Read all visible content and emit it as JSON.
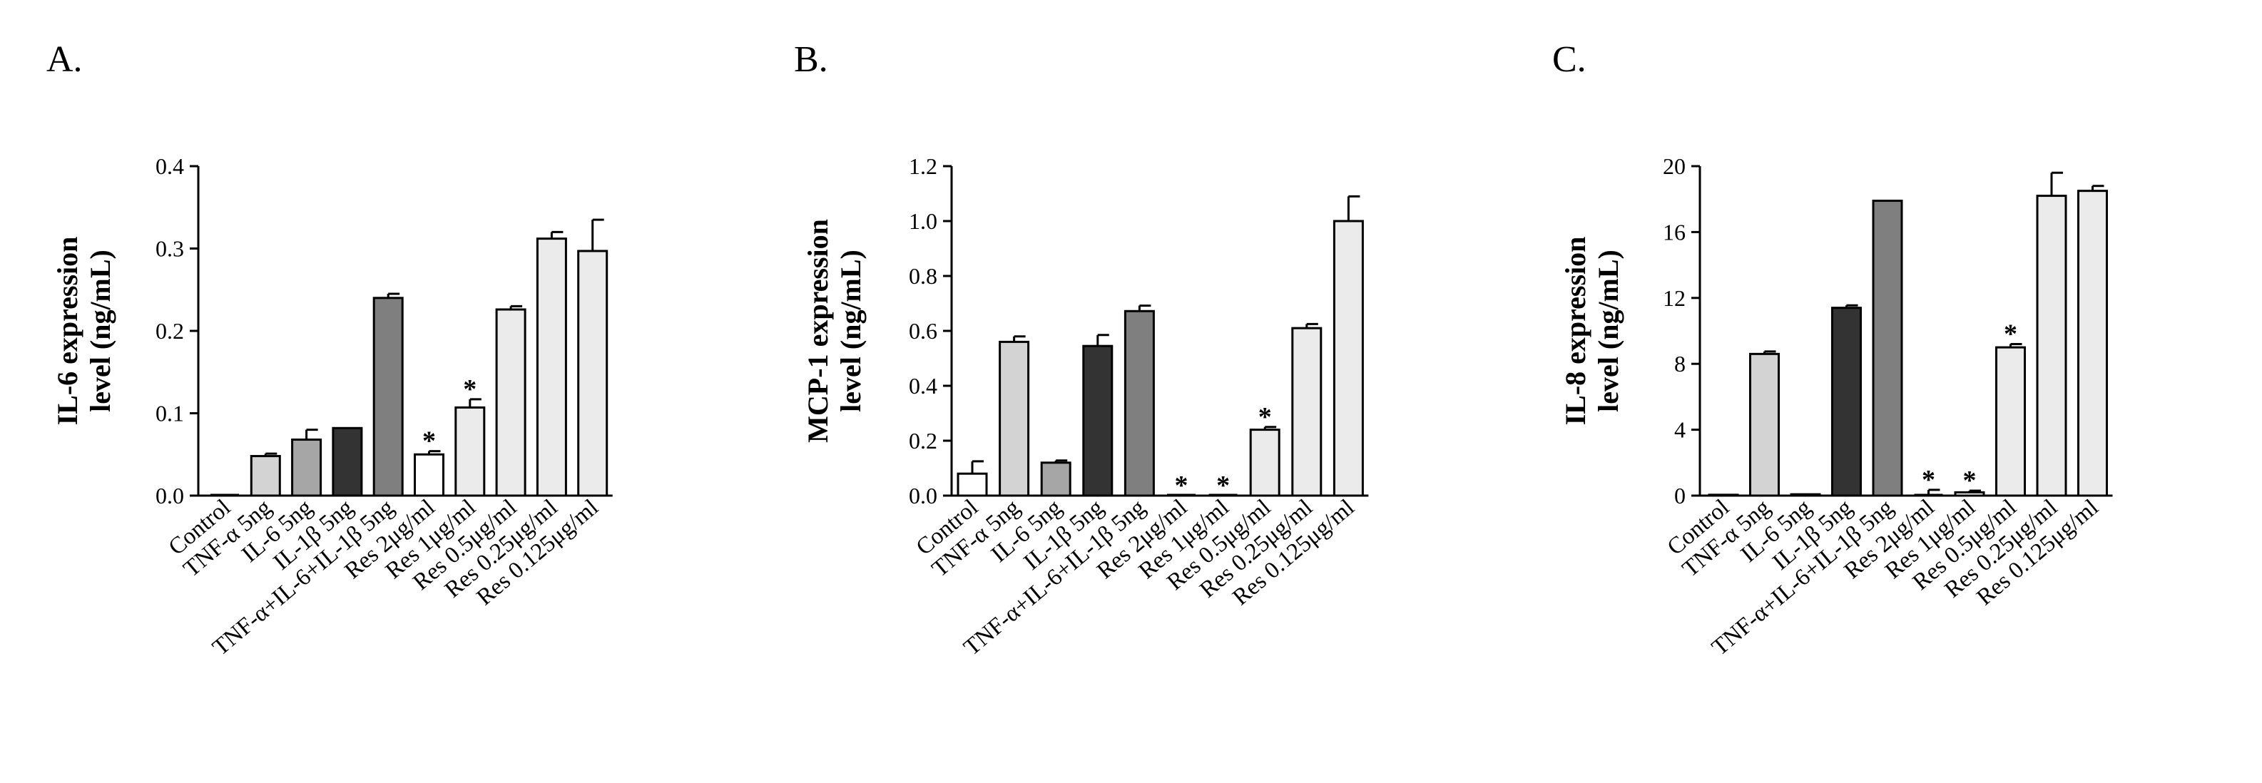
{
  "figure": {
    "colors": {
      "white": "#ffffff",
      "light_gray": "#d3d3d3",
      "mid_gray": "#a6a6a6",
      "dark_gray": "#333333",
      "gray": "#7f7f7f",
      "pale_gray": "#ebebeb"
    }
  },
  "chart_data": [
    {
      "type": "bar",
      "panel_label": "A.",
      "ylabel": [
        "IL-6 expression",
        "level (ng/mL)"
      ],
      "ylim": [
        0,
        0.4
      ],
      "yticks": [
        "0.0",
        "0.1",
        "0.2",
        "0.3",
        "0.4"
      ],
      "ytick_values": [
        0,
        0.1,
        0.2,
        0.3,
        0.4
      ],
      "categories": [
        "Control",
        "TNF-α 5ng",
        "IL-6 5ng",
        "IL-1β 5ng",
        "TNF-α+IL-6+IL-1β 5ng",
        "Res 2μg/ml",
        "Res 1μg/ml",
        "Res 0.5μg/ml",
        "Res 0.25μg/ml",
        "Res 0.125μg/ml"
      ],
      "values": [
        0.0,
        0.048,
        0.068,
        0.082,
        0.24,
        0.05,
        0.107,
        0.226,
        0.312,
        0.297
      ],
      "errors": [
        0.0,
        0.003,
        0.012,
        0.0,
        0.005,
        0.004,
        0.01,
        0.004,
        0.008,
        0.038
      ],
      "significant": [
        false,
        false,
        false,
        false,
        false,
        true,
        true,
        false,
        false,
        false
      ],
      "fills": [
        "white",
        "light_gray",
        "mid_gray",
        "dark_gray",
        "gray",
        "white",
        "pale_gray",
        "pale_gray",
        "pale_gray",
        "pale_gray"
      ]
    },
    {
      "type": "bar",
      "panel_label": "B.",
      "ylabel": [
        "MCP-1 expression",
        "level (ng/mL)"
      ],
      "ylim": [
        0,
        1.2
      ],
      "yticks": [
        "0.0",
        "0.2",
        "0.4",
        "0.6",
        "0.8",
        "1.0",
        "1.2"
      ],
      "ytick_values": [
        0,
        0.2,
        0.4,
        0.6,
        0.8,
        1.0,
        1.2
      ],
      "categories": [
        "Control",
        "TNF-α 5ng",
        "IL-6 5ng",
        "IL-1β 5ng",
        "TNF-α+IL-6+IL-1β 5ng",
        "Res 2μg/ml",
        "Res 1μg/ml",
        "Res 0.5μg/ml",
        "Res 0.25μg/ml",
        "Res 0.125μg/ml"
      ],
      "values": [
        0.08,
        0.56,
        0.12,
        0.545,
        0.672,
        0.0,
        0.0,
        0.24,
        0.61,
        1.0
      ],
      "errors": [
        0.045,
        0.02,
        0.008,
        0.04,
        0.02,
        0.0,
        0.0,
        0.01,
        0.015,
        0.09
      ],
      "significant": [
        false,
        false,
        false,
        false,
        false,
        true,
        true,
        true,
        false,
        false
      ],
      "fills": [
        "white",
        "light_gray",
        "mid_gray",
        "dark_gray",
        "gray",
        "white",
        "white",
        "pale_gray",
        "pale_gray",
        "pale_gray"
      ]
    },
    {
      "type": "bar",
      "panel_label": "C.",
      "ylabel": [
        "IL-8 expression",
        "level (ng/mL)"
      ],
      "ylim": [
        0,
        20
      ],
      "yticks": [
        "0",
        "4",
        "8",
        "12",
        "16",
        "20"
      ],
      "ytick_values": [
        0,
        4,
        8,
        12,
        16,
        20
      ],
      "categories": [
        "Control",
        "TNF-α 5ng",
        "IL-6 5ng",
        "IL-1β 5ng",
        "TNF-α+IL-6+IL-1β 5ng",
        "Res 2μg/ml",
        "Res 1μg/ml",
        "Res 0.5μg/ml",
        "Res 0.25μg/ml",
        "Res 0.125μg/ml"
      ],
      "values": [
        0.05,
        8.6,
        0.08,
        11.4,
        17.9,
        0.0,
        0.2,
        9.0,
        18.2,
        18.5
      ],
      "errors": [
        0.0,
        0.15,
        0.0,
        0.15,
        0.0,
        0.35,
        0.1,
        0.2,
        1.4,
        0.3
      ],
      "significant": [
        false,
        false,
        false,
        false,
        false,
        true,
        true,
        true,
        false,
        false
      ],
      "fills": [
        "white",
        "light_gray",
        "mid_gray",
        "dark_gray",
        "gray",
        "white",
        "white",
        "pale_gray",
        "pale_gray",
        "pale_gray"
      ]
    }
  ]
}
